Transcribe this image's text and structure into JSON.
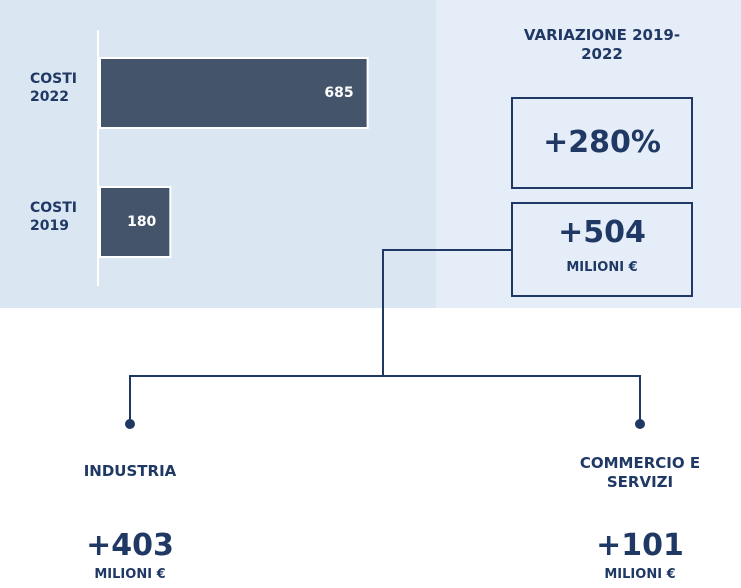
{
  "chart_data": {
    "type": "bar",
    "orientation": "horizontal",
    "categories": [
      "COSTI 2022",
      "COSTI 2019"
    ],
    "values": [
      685,
      180
    ],
    "color": "#44546a",
    "xlim": [
      0,
      860
    ]
  },
  "variation": {
    "title": "VARIAZIONE 2019-2022",
    "percent": "+280%",
    "amount": "+504",
    "unit": "MILIONI €"
  },
  "breakdown": [
    {
      "label": "INDUSTRIA",
      "amount": "+403",
      "unit": "MILIONI €"
    },
    {
      "label": "COMMERCIO E SERVIZI",
      "amount": "+101",
      "unit": "MILIONI €"
    }
  ]
}
